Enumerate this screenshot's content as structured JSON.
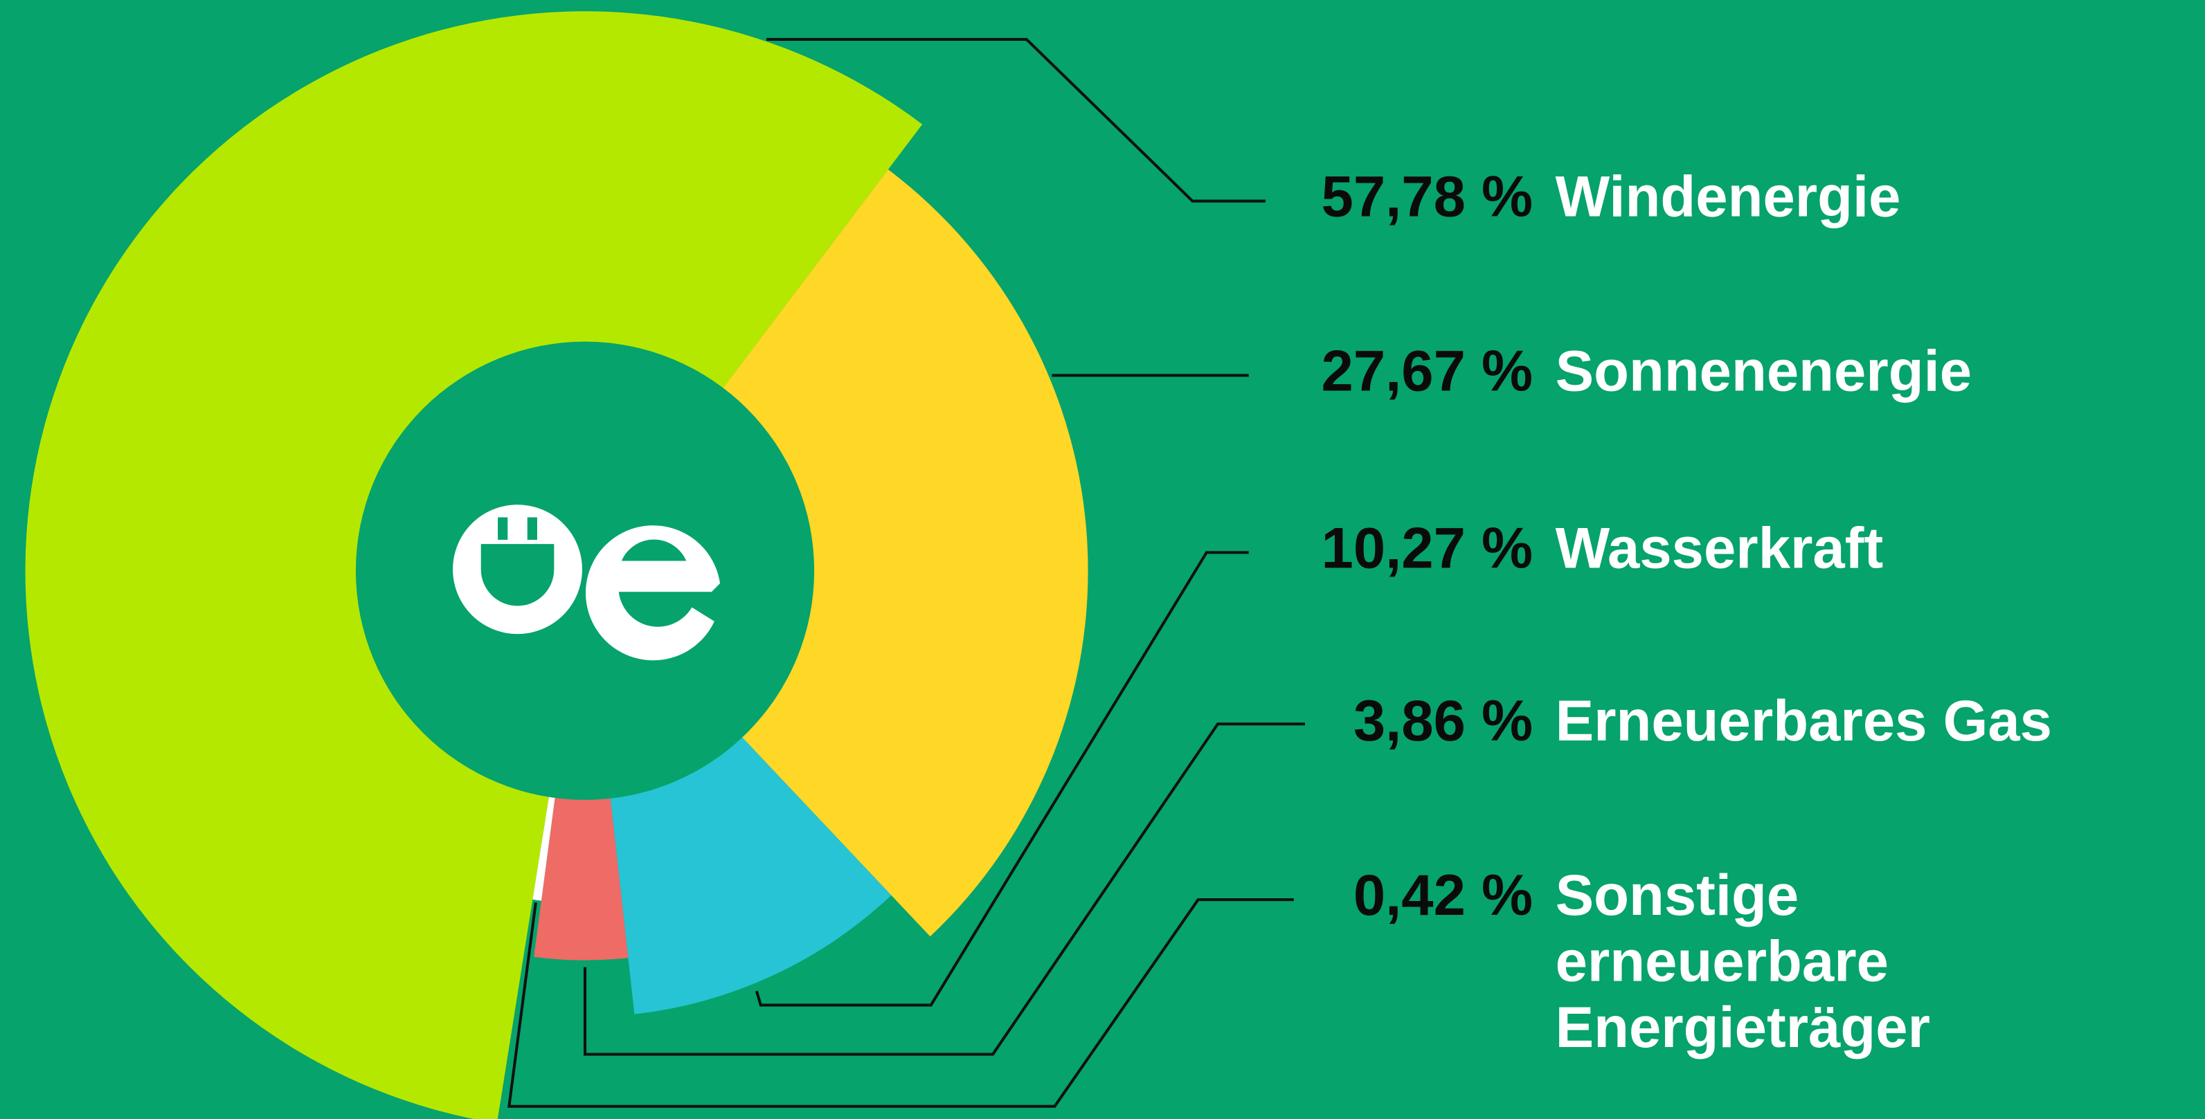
{
  "chart_data": {
    "type": "pie",
    "categories": [
      "Windenergie",
      "Sonnenenergie",
      "Wasserkraft",
      "Erneuerbares Gas",
      "Sonstige erneuerbare Energieträger"
    ],
    "values": [
      57.78,
      27.67,
      10.27,
      3.86,
      0.42
    ],
    "value_labels": [
      "57,78 %",
      "27,67 %",
      "10,27 %",
      "3,86 %",
      "0,42 %"
    ],
    "colors": [
      "#b5e800",
      "#ffd726",
      "#26c4d4",
      "#ee6b66",
      "#ffffff"
    ]
  }
}
